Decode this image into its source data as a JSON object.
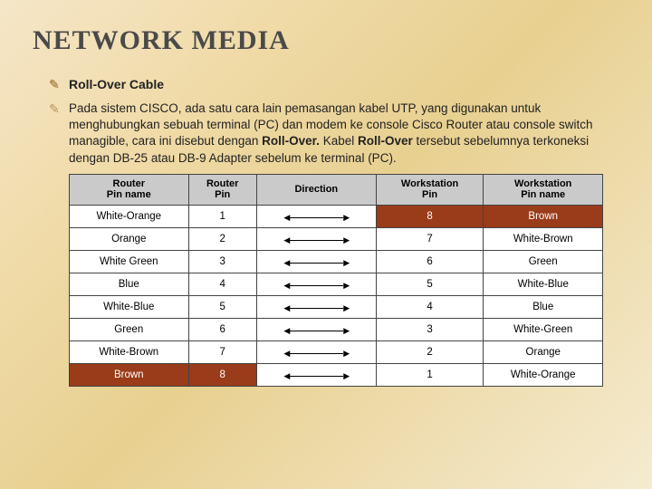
{
  "title": "NETWORK MEDIA",
  "subtitle": "Roll-Over Cable",
  "description_html": "Pada sistem CISCO, ada satu cara lain pemasangan kabel UTP, yang digunakan untuk menghubungkan sebuah terminal (PC) dan modem ke console Cisco Router atau console switch managible, cara ini disebut dengan <b>Roll-Over.</b> Kabel <b>Roll-Over</b> tersebut sebelumnya terkoneksi dengan DB-25 atau DB-9 Adapter sebelum ke terminal (PC).",
  "table": {
    "columns": [
      "Router\nPin name",
      "Router\nPin",
      "Direction",
      "Workstation\nPin",
      "Workstation\nPin name"
    ],
    "rows": [
      {
        "cells": [
          "White-Orange",
          "1",
          "↔",
          "8",
          "Brown"
        ],
        "highlight_right": true
      },
      {
        "cells": [
          "Orange",
          "2",
          "↔",
          "7",
          "White-Brown"
        ]
      },
      {
        "cells": [
          "White Green",
          "3",
          "↔",
          "6",
          "Green"
        ]
      },
      {
        "cells": [
          "Blue",
          "4",
          "↔",
          "5",
          "White-Blue"
        ]
      },
      {
        "cells": [
          "White-Blue",
          "5",
          "↔",
          "4",
          "Blue"
        ]
      },
      {
        "cells": [
          "Green",
          "6",
          "↔",
          "3",
          "White-Green"
        ]
      },
      {
        "cells": [
          "White-Brown",
          "7",
          "↔",
          "2",
          "Orange"
        ]
      },
      {
        "cells": [
          "Brown",
          "8",
          "↔",
          "1",
          "White-Orange"
        ],
        "highlight_left": true
      }
    ]
  },
  "colors": {
    "highlight_bg": "#9a3b1a",
    "header_bg": "#c9cac9"
  }
}
